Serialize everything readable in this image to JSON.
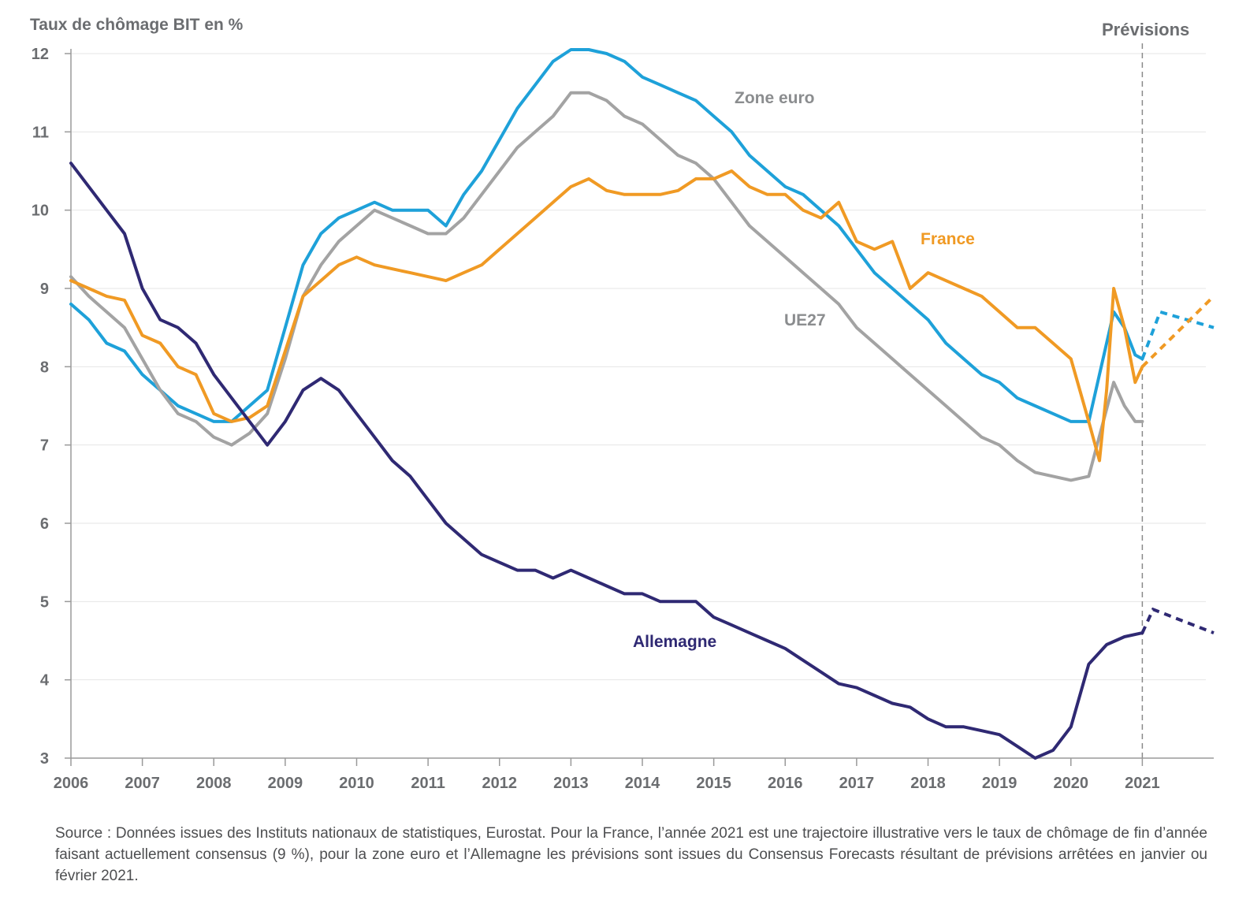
{
  "chart_data": {
    "type": "line",
    "ylabel": "Taux de chômage BIT en %",
    "ylim": [
      3,
      12
    ],
    "yticks": [
      3,
      4,
      5,
      6,
      7,
      8,
      9,
      10,
      11,
      12
    ],
    "xlim": [
      2006,
      2022
    ],
    "xticks": [
      "2006",
      "2007",
      "2008",
      "2009",
      "2010",
      "2011",
      "2012",
      "2013",
      "2014",
      "2015",
      "2016",
      "2017",
      "2018",
      "2019",
      "2020",
      "2021"
    ],
    "forecast_start": 2021,
    "forecast_label": "Prévisions",
    "grid": true,
    "series": [
      {
        "name": "Zone euro",
        "color": "#1ea1d9",
        "points": [
          [
            2006.0,
            8.8
          ],
          [
            2006.25,
            8.6
          ],
          [
            2006.5,
            8.3
          ],
          [
            2006.75,
            8.2
          ],
          [
            2007.0,
            7.9
          ],
          [
            2007.25,
            7.7
          ],
          [
            2007.5,
            7.5
          ],
          [
            2007.75,
            7.4
          ],
          [
            2008.0,
            7.3
          ],
          [
            2008.25,
            7.3
          ],
          [
            2008.5,
            7.5
          ],
          [
            2008.75,
            7.7
          ],
          [
            2009.0,
            8.5
          ],
          [
            2009.25,
            9.3
          ],
          [
            2009.5,
            9.7
          ],
          [
            2009.75,
            9.9
          ],
          [
            2010.0,
            10.0
          ],
          [
            2010.25,
            10.1
          ],
          [
            2010.5,
            10.0
          ],
          [
            2010.75,
            10.0
          ],
          [
            2011.0,
            10.0
          ],
          [
            2011.25,
            9.8
          ],
          [
            2011.5,
            10.2
          ],
          [
            2011.75,
            10.5
          ],
          [
            2012.0,
            10.9
          ],
          [
            2012.25,
            11.3
          ],
          [
            2012.5,
            11.6
          ],
          [
            2012.75,
            11.9
          ],
          [
            2013.0,
            12.05
          ],
          [
            2013.25,
            12.05
          ],
          [
            2013.5,
            12.0
          ],
          [
            2013.75,
            11.9
          ],
          [
            2014.0,
            11.7
          ],
          [
            2014.25,
            11.6
          ],
          [
            2014.5,
            11.5
          ],
          [
            2014.75,
            11.4
          ],
          [
            2015.0,
            11.2
          ],
          [
            2015.25,
            11.0
          ],
          [
            2015.5,
            10.7
          ],
          [
            2015.75,
            10.5
          ],
          [
            2016.0,
            10.3
          ],
          [
            2016.25,
            10.2
          ],
          [
            2016.5,
            10.0
          ],
          [
            2016.75,
            9.8
          ],
          [
            2017.0,
            9.5
          ],
          [
            2017.25,
            9.2
          ],
          [
            2017.5,
            9.0
          ],
          [
            2017.75,
            8.8
          ],
          [
            2018.0,
            8.6
          ],
          [
            2018.25,
            8.3
          ],
          [
            2018.5,
            8.1
          ],
          [
            2018.75,
            7.9
          ],
          [
            2019.0,
            7.8
          ],
          [
            2019.25,
            7.6
          ],
          [
            2019.5,
            7.5
          ],
          [
            2019.75,
            7.4
          ],
          [
            2020.0,
            7.3
          ],
          [
            2020.25,
            7.3
          ],
          [
            2020.6,
            8.7
          ],
          [
            2020.75,
            8.5
          ],
          [
            2020.9,
            8.15
          ],
          [
            2021.0,
            8.1
          ]
        ],
        "forecast": [
          [
            2021.0,
            8.1
          ],
          [
            2021.25,
            8.7
          ],
          [
            2022.0,
            8.5
          ]
        ]
      },
      {
        "name": "UE27",
        "color": "#a3a3a3",
        "points": [
          [
            2006.0,
            9.15
          ],
          [
            2006.25,
            8.9
          ],
          [
            2006.5,
            8.7
          ],
          [
            2006.75,
            8.5
          ],
          [
            2007.0,
            8.1
          ],
          [
            2007.25,
            7.7
          ],
          [
            2007.5,
            7.4
          ],
          [
            2007.75,
            7.3
          ],
          [
            2008.0,
            7.1
          ],
          [
            2008.25,
            7.0
          ],
          [
            2008.5,
            7.15
          ],
          [
            2008.75,
            7.4
          ],
          [
            2009.0,
            8.1
          ],
          [
            2009.25,
            8.9
          ],
          [
            2009.5,
            9.3
          ],
          [
            2009.75,
            9.6
          ],
          [
            2010.0,
            9.8
          ],
          [
            2010.25,
            10.0
          ],
          [
            2010.5,
            9.9
          ],
          [
            2010.75,
            9.8
          ],
          [
            2011.0,
            9.7
          ],
          [
            2011.25,
            9.7
          ],
          [
            2011.5,
            9.9
          ],
          [
            2011.75,
            10.2
          ],
          [
            2012.0,
            10.5
          ],
          [
            2012.25,
            10.8
          ],
          [
            2012.5,
            11.0
          ],
          [
            2012.75,
            11.2
          ],
          [
            2013.0,
            11.5
          ],
          [
            2013.25,
            11.5
          ],
          [
            2013.5,
            11.4
          ],
          [
            2013.75,
            11.2
          ],
          [
            2014.0,
            11.1
          ],
          [
            2014.25,
            10.9
          ],
          [
            2014.5,
            10.7
          ],
          [
            2014.75,
            10.6
          ],
          [
            2015.0,
            10.4
          ],
          [
            2015.25,
            10.1
          ],
          [
            2015.5,
            9.8
          ],
          [
            2015.75,
            9.6
          ],
          [
            2016.0,
            9.4
          ],
          [
            2016.25,
            9.2
          ],
          [
            2016.5,
            9.0
          ],
          [
            2016.75,
            8.8
          ],
          [
            2017.0,
            8.5
          ],
          [
            2017.25,
            8.3
          ],
          [
            2017.5,
            8.1
          ],
          [
            2017.75,
            7.9
          ],
          [
            2018.0,
            7.7
          ],
          [
            2018.25,
            7.5
          ],
          [
            2018.5,
            7.3
          ],
          [
            2018.75,
            7.1
          ],
          [
            2019.0,
            7.0
          ],
          [
            2019.25,
            6.8
          ],
          [
            2019.5,
            6.65
          ],
          [
            2019.75,
            6.6
          ],
          [
            2020.0,
            6.55
          ],
          [
            2020.25,
            6.6
          ],
          [
            2020.6,
            7.8
          ],
          [
            2020.75,
            7.5
          ],
          [
            2020.9,
            7.3
          ],
          [
            2021.0,
            7.3
          ]
        ]
      },
      {
        "name": "France",
        "color": "#f09a24",
        "points": [
          [
            2006.0,
            9.1
          ],
          [
            2006.25,
            9.0
          ],
          [
            2006.5,
            8.9
          ],
          [
            2006.75,
            8.85
          ],
          [
            2007.0,
            8.4
          ],
          [
            2007.25,
            8.3
          ],
          [
            2007.5,
            8.0
          ],
          [
            2007.75,
            7.9
          ],
          [
            2008.0,
            7.4
          ],
          [
            2008.25,
            7.3
          ],
          [
            2008.5,
            7.35
          ],
          [
            2008.75,
            7.5
          ],
          [
            2009.0,
            8.2
          ],
          [
            2009.25,
            8.9
          ],
          [
            2009.5,
            9.1
          ],
          [
            2009.75,
            9.3
          ],
          [
            2010.0,
            9.4
          ],
          [
            2010.25,
            9.3
          ],
          [
            2010.5,
            9.25
          ],
          [
            2010.75,
            9.2
          ],
          [
            2011.0,
            9.15
          ],
          [
            2011.25,
            9.1
          ],
          [
            2011.5,
            9.2
          ],
          [
            2011.75,
            9.3
          ],
          [
            2012.0,
            9.5
          ],
          [
            2012.25,
            9.7
          ],
          [
            2012.5,
            9.9
          ],
          [
            2012.75,
            10.1
          ],
          [
            2013.0,
            10.3
          ],
          [
            2013.25,
            10.4
          ],
          [
            2013.5,
            10.25
          ],
          [
            2013.75,
            10.2
          ],
          [
            2014.0,
            10.2
          ],
          [
            2014.25,
            10.2
          ],
          [
            2014.5,
            10.25
          ],
          [
            2014.75,
            10.4
          ],
          [
            2015.0,
            10.4
          ],
          [
            2015.25,
            10.5
          ],
          [
            2015.5,
            10.3
          ],
          [
            2015.75,
            10.2
          ],
          [
            2016.0,
            10.2
          ],
          [
            2016.25,
            10.0
          ],
          [
            2016.5,
            9.9
          ],
          [
            2016.75,
            10.1
          ],
          [
            2017.0,
            9.6
          ],
          [
            2017.25,
            9.5
          ],
          [
            2017.5,
            9.6
          ],
          [
            2017.75,
            9.0
          ],
          [
            2018.0,
            9.2
          ],
          [
            2018.25,
            9.1
          ],
          [
            2018.5,
            9.0
          ],
          [
            2018.75,
            8.9
          ],
          [
            2019.0,
            8.7
          ],
          [
            2019.25,
            8.5
          ],
          [
            2019.5,
            8.5
          ],
          [
            2019.75,
            8.3
          ],
          [
            2020.0,
            8.1
          ],
          [
            2020.25,
            7.3
          ],
          [
            2020.4,
            6.8
          ],
          [
            2020.5,
            7.7
          ],
          [
            2020.6,
            9.0
          ],
          [
            2020.75,
            8.5
          ],
          [
            2020.9,
            7.8
          ],
          [
            2021.0,
            8.0
          ]
        ],
        "forecast": [
          [
            2021.0,
            8.0
          ],
          [
            2022.0,
            8.9
          ]
        ]
      },
      {
        "name": "Allemagne",
        "color": "#2f2973",
        "points": [
          [
            2006.0,
            10.6
          ],
          [
            2006.25,
            10.3
          ],
          [
            2006.5,
            10.0
          ],
          [
            2006.75,
            9.7
          ],
          [
            2007.0,
            9.0
          ],
          [
            2007.25,
            8.6
          ],
          [
            2007.5,
            8.5
          ],
          [
            2007.75,
            8.3
          ],
          [
            2008.0,
            7.9
          ],
          [
            2008.25,
            7.6
          ],
          [
            2008.5,
            7.3
          ],
          [
            2008.75,
            7.0
          ],
          [
            2009.0,
            7.3
          ],
          [
            2009.25,
            7.7
          ],
          [
            2009.5,
            7.85
          ],
          [
            2009.75,
            7.7
          ],
          [
            2010.0,
            7.4
          ],
          [
            2010.25,
            7.1
          ],
          [
            2010.5,
            6.8
          ],
          [
            2010.75,
            6.6
          ],
          [
            2011.0,
            6.3
          ],
          [
            2011.25,
            6.0
          ],
          [
            2011.5,
            5.8
          ],
          [
            2011.75,
            5.6
          ],
          [
            2012.0,
            5.5
          ],
          [
            2012.25,
            5.4
          ],
          [
            2012.5,
            5.4
          ],
          [
            2012.75,
            5.3
          ],
          [
            2013.0,
            5.4
          ],
          [
            2013.25,
            5.3
          ],
          [
            2013.5,
            5.2
          ],
          [
            2013.75,
            5.1
          ],
          [
            2014.0,
            5.1
          ],
          [
            2014.25,
            5.0
          ],
          [
            2014.5,
            5.0
          ],
          [
            2014.75,
            5.0
          ],
          [
            2015.0,
            4.8
          ],
          [
            2015.25,
            4.7
          ],
          [
            2015.5,
            4.6
          ],
          [
            2015.75,
            4.5
          ],
          [
            2016.0,
            4.4
          ],
          [
            2016.25,
            4.25
          ],
          [
            2016.5,
            4.1
          ],
          [
            2016.75,
            3.95
          ],
          [
            2017.0,
            3.9
          ],
          [
            2017.25,
            3.8
          ],
          [
            2017.5,
            3.7
          ],
          [
            2017.75,
            3.65
          ],
          [
            2018.0,
            3.5
          ],
          [
            2018.25,
            3.4
          ],
          [
            2018.5,
            3.4
          ],
          [
            2018.75,
            3.35
          ],
          [
            2019.0,
            3.3
          ],
          [
            2019.25,
            3.15
          ],
          [
            2019.5,
            3.0
          ],
          [
            2019.75,
            3.1
          ],
          [
            2020.0,
            3.4
          ],
          [
            2020.25,
            4.2
          ],
          [
            2020.5,
            4.45
          ],
          [
            2020.75,
            4.55
          ],
          [
            2021.0,
            4.6
          ]
        ],
        "forecast": [
          [
            2021.0,
            4.6
          ],
          [
            2021.15,
            4.9
          ],
          [
            2022.0,
            4.6
          ]
        ]
      }
    ],
    "annotations": [
      {
        "text": "Zone euro",
        "color": "#8b8d8f"
      },
      {
        "text": "France",
        "color": "#f09a24"
      },
      {
        "text": "UE27",
        "color": "#8b8d8f"
      },
      {
        "text": "Allemagne",
        "color": "#2f2973"
      }
    ]
  },
  "source_note": "Source : Données issues des Instituts nationaux de statistiques, Eurostat. Pour la France, l’année 2021 est une trajectoire illustrative vers le taux de chômage de fin d’année faisant actuellement consensus (9 %), pour la zone euro et l’Allemagne les prévisions sont issues du Consensus Forecasts résultant de prévisions arrêtées en janvier ou février 2021."
}
